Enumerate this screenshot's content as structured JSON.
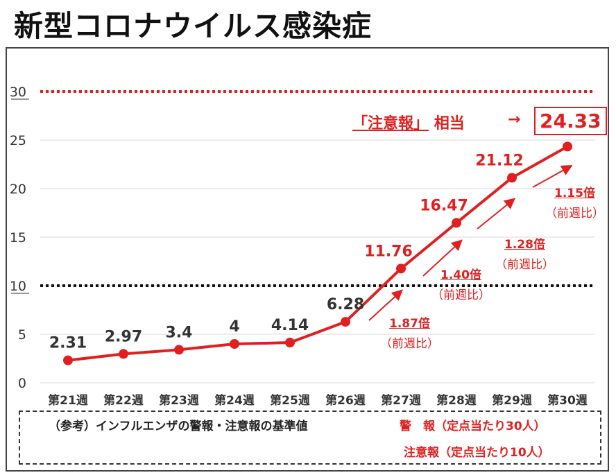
{
  "title": "新型コロナウイルス感染症",
  "annotation": {
    "advisory_label": "「注意報」",
    "advisory_suffix": "相当",
    "arrow": "→",
    "final_value": "24.33"
  },
  "ratios": [
    {
      "value": "1.87倍",
      "caption": "（前週比）"
    },
    {
      "value": "1.40倍",
      "caption": "（前週比）"
    },
    {
      "value": "1.28倍",
      "caption": "（前週比）"
    },
    {
      "value": "1.15倍",
      "caption": "（前週比）"
    }
  ],
  "reference": {
    "label": "（参考）インフルエンザの警報・注意報の基準値",
    "alert": "警　報（定点当たり30人）",
    "advisory": "注意報（定点当たり10人）"
  },
  "colors": {
    "series": "#e02020",
    "alert_line": "#e02020",
    "advisory_line": "#111111",
    "grid": "#d9d9d9"
  },
  "chart_data": {
    "type": "line",
    "categories": [
      "第21週",
      "第22週",
      "第23週",
      "第24週",
      "第25週",
      "第26週",
      "第27週",
      "第28週",
      "第29週",
      "第30週"
    ],
    "series": [
      {
        "values": [
          2.31,
          2.97,
          3.4,
          4,
          4.14,
          6.28,
          11.76,
          16.47,
          21.12,
          24.33
        ]
      }
    ],
    "data_labels": [
      "2.31",
      "2.97",
      "3.4",
      "4",
      "4.14",
      "6.28",
      "11.76",
      "16.47",
      "21.12",
      ""
    ],
    "y_ticks": [
      0,
      5,
      10,
      15,
      20,
      25,
      30
    ],
    "ylim": [
      0,
      30
    ],
    "grid": true,
    "reference_lines": [
      {
        "value": 30,
        "style": "dotted",
        "color": "#e02020"
      },
      {
        "value": 10,
        "style": "dotted",
        "color": "#111111"
      }
    ],
    "title": "",
    "xlabel": "",
    "ylabel": ""
  }
}
